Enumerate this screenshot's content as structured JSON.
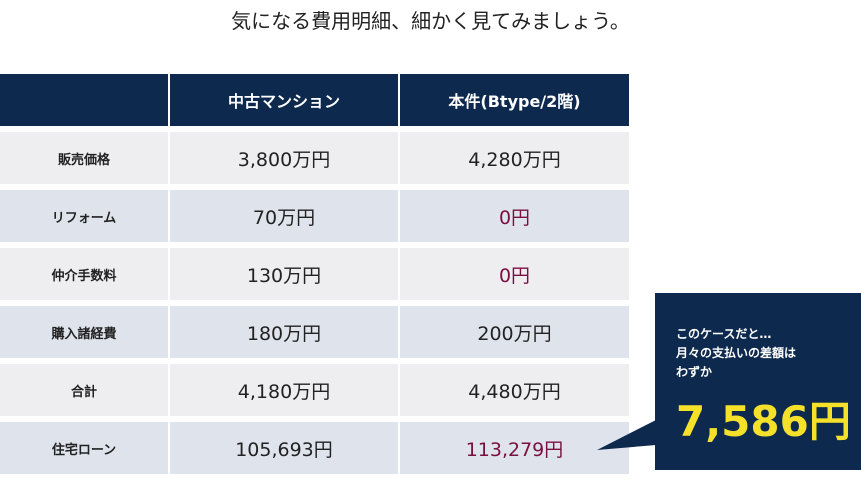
{
  "title": "気になる費用明細、細かく見てみましょう。",
  "table": {
    "header": [
      "中古マンション",
      "本件(Btype/2階)"
    ],
    "rows": [
      [
        "販売価格",
        "3,800万円",
        "4,280万円"
      ],
      [
        "リフォーム",
        "70万円",
        "0円"
      ],
      [
        "仲介手数料",
        "130万円",
        "0円"
      ],
      [
        "購入諸経費",
        "180万円",
        "200万円"
      ],
      [
        "合計",
        "4,180万円",
        "4,480万円"
      ],
      [
        "住宅ローン",
        "105,693円",
        "113,279円"
      ]
    ]
  },
  "callout": {
    "lines": [
      "このケースだと…",
      "月々の支払いの差額は",
      "わずか"
    ],
    "amount": "7,586円"
  }
}
